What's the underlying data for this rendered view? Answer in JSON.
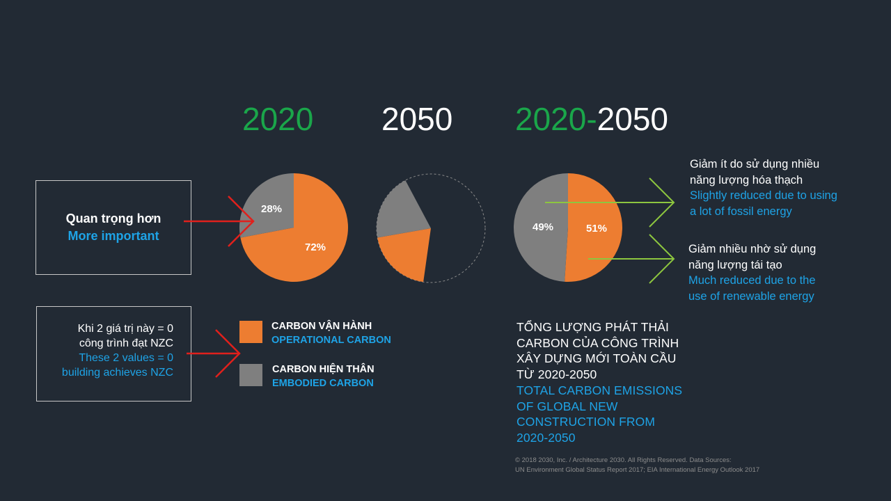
{
  "headings": {
    "y2020": "2020",
    "y2050": "2050",
    "range_start": "2020",
    "range_sep": "-",
    "range_end": "2050"
  },
  "box_important": {
    "vi": "Quan trọng hơn",
    "en": "More important"
  },
  "box_nzc": {
    "vi_line1": "Khi 2 giá trị này = 0",
    "vi_line2": "công trình đạt NZC",
    "en_line1": "These 2 values = 0",
    "en_line2": "building achieves NZC"
  },
  "legend": {
    "operational_vi": "CARBON VẬN HÀNH",
    "operational_en": "OPERATIONAL CARBON",
    "embodied_vi": "CARBON HIỆN THÂN",
    "embodied_en": "EMBODIED CARBON"
  },
  "notes": {
    "top_vi_1": "Giảm ít do sử dụng nhiều",
    "top_vi_2": "năng lượng hóa thạch",
    "top_en_1": "Slightly reduced due to using",
    "top_en_2": "a lot of fossil energy",
    "bottom_vi_1": "Giảm nhiều nhờ sử dụng",
    "bottom_vi_2": "năng lượng tái tạo",
    "bottom_en_1": "Much reduced due to the",
    "bottom_en_2": "use of renewable energy"
  },
  "total": {
    "vi_1": "TỔNG LƯỢNG PHÁT THẢI",
    "vi_2": "CARBON CỦA CÔNG TRÌNH",
    "vi_3": "XÂY DỰNG MỚI TOÀN CẦU",
    "vi_4": "TỪ 2020-2050",
    "en_1": "TOTAL CARBON EMISSIONS",
    "en_2": "OF GLOBAL NEW",
    "en_3": "CONSTRUCTION FROM",
    "en_4": "2020-2050"
  },
  "footer": {
    "line1": "© 2018 2030, Inc. / Architecture 2030. All Rights Reserved. Data Sources:",
    "line2": "UN Environment Global Status Report 2017; EIA International Energy Outlook 2017"
  },
  "colors": {
    "operational": "#ed7d31",
    "embodied": "#7f7f7f",
    "green": "#1aa64a",
    "blue": "#1ea3e6",
    "arrow_red": "#e0201c",
    "arrow_green": "#8dc63f"
  },
  "chart_data": [
    {
      "type": "pie",
      "title": "2020",
      "categories": [
        "OPERATIONAL CARBON",
        "EMBODIED CARBON"
      ],
      "values": [
        72,
        28
      ],
      "labels": [
        "72%",
        "28%"
      ]
    },
    {
      "type": "pie",
      "title": "2050",
      "categories": [
        "OPERATIONAL CARBON",
        "EMBODIED CARBON"
      ],
      "values": [
        20,
        20
      ],
      "remainder_outline": "dashed",
      "labels": []
    },
    {
      "type": "pie",
      "title": "2020-2050",
      "categories": [
        "OPERATIONAL CARBON",
        "EMBODIED CARBON"
      ],
      "values": [
        51,
        49
      ],
      "labels": [
        "51%",
        "49%"
      ]
    }
  ]
}
